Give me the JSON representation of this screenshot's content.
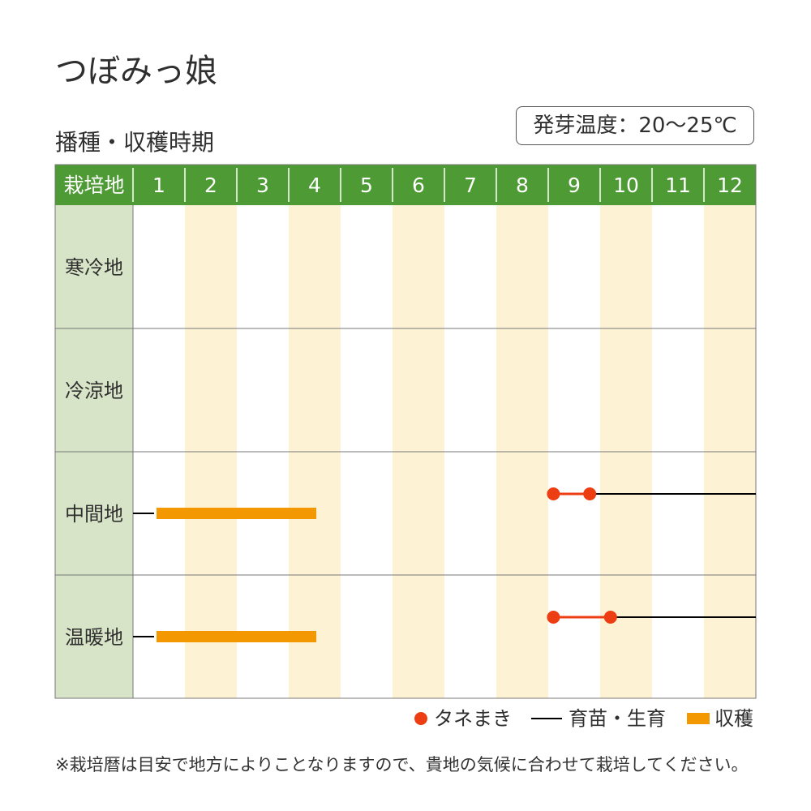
{
  "title": "つぼみっ娘",
  "subtitle": "播種・収穫時期",
  "germination": "発芽温度：20〜25℃",
  "note": "※栽培暦は目安で地方によりことなりますので、貴地の気候に合わせて栽培してください。",
  "legend": {
    "sowing": "タネまき",
    "growing": "育苗・生育",
    "harvest": "収穫"
  },
  "colors": {
    "header": "#4e9a34",
    "label_col": "#d8e4c7",
    "stripe": "#fdf3d4",
    "sowing": "#ec3e12",
    "harvest": "#f39800",
    "growing": "#000000",
    "grid": "#777777"
  },
  "chart_data": {
    "type": "table",
    "corner_label": "栽培地",
    "months": [
      "1",
      "2",
      "3",
      "4",
      "5",
      "6",
      "7",
      "8",
      "9",
      "10",
      "11",
      "12"
    ],
    "regions": [
      {
        "name": "寒冷地",
        "sowing": [],
        "growing": [],
        "harvest": []
      },
      {
        "name": "冷涼地",
        "sowing": [],
        "growing": [],
        "harvest": []
      },
      {
        "name": "中間地",
        "sowing": [
          [
            9.1,
            9.8
          ]
        ],
        "growing": [
          [
            9.8,
            13.0
          ]
        ],
        "harvest": [
          [
            1.0,
            4.5
          ]
        ],
        "lead_in_from": 1.0
      },
      {
        "name": "温暖地",
        "sowing": [
          [
            9.1,
            10.2
          ]
        ],
        "growing": [
          [
            10.2,
            13.0
          ]
        ],
        "harvest": [
          [
            1.0,
            4.5
          ]
        ],
        "lead_in_from": 1.0
      }
    ]
  }
}
